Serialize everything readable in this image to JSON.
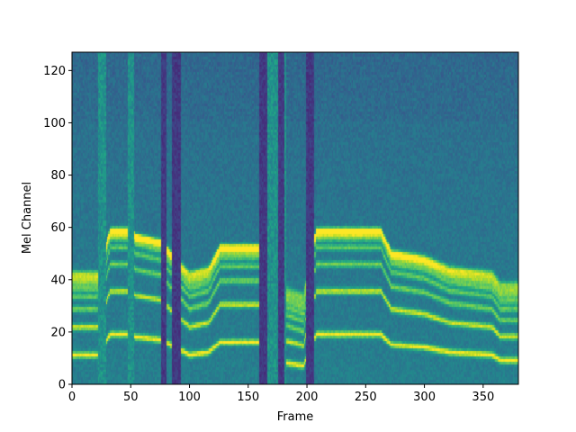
{
  "chart_data": {
    "type": "heatmap",
    "title": "",
    "xlabel": "Frame",
    "ylabel": "Mel Channel",
    "xlim": [
      0,
      380
    ],
    "ylim": [
      0,
      127
    ],
    "xticks": [
      0,
      50,
      100,
      150,
      200,
      250,
      300,
      350
    ],
    "yticks": [
      0,
      20,
      40,
      60,
      80,
      100,
      120
    ],
    "colormap": "viridis",
    "grid": false,
    "legend": "none",
    "f0_contour": [
      {
        "frame": 8,
        "channel": 11
      },
      {
        "frame": 22,
        "channel": 11
      },
      {
        "frame": 32,
        "channel": 19
      },
      {
        "frame": 50,
        "channel": 19
      },
      {
        "frame": 54,
        "channel": 18
      },
      {
        "frame": 75,
        "channel": 17
      },
      {
        "frame": 100,
        "channel": 11
      },
      {
        "frame": 116,
        "channel": 12
      },
      {
        "frame": 126,
        "channel": 16
      },
      {
        "frame": 160,
        "channel": 16
      },
      {
        "frame": 183,
        "channel": 8
      },
      {
        "frame": 197,
        "channel": 7
      },
      {
        "frame": 208,
        "channel": 19
      },
      {
        "frame": 263,
        "channel": 19
      },
      {
        "frame": 272,
        "channel": 15
      },
      {
        "frame": 300,
        "channel": 14
      },
      {
        "frame": 322,
        "channel": 12
      },
      {
        "frame": 358,
        "channel": 11
      },
      {
        "frame": 365,
        "channel": 9
      },
      {
        "frame": 380,
        "channel": 9
      }
    ],
    "silent_frames": [
      {
        "start": 76,
        "end": 80
      },
      {
        "start": 85,
        "end": 92
      },
      {
        "start": 160,
        "end": 166
      },
      {
        "start": 176,
        "end": 180
      },
      {
        "start": 200,
        "end": 206
      }
    ],
    "noise_frames": [
      {
        "start": 22,
        "end": 28
      },
      {
        "start": 48,
        "end": 52
      },
      {
        "start": 164,
        "end": 176
      },
      {
        "start": 178,
        "end": 182
      },
      {
        "start": 200,
        "end": 206
      }
    ]
  }
}
